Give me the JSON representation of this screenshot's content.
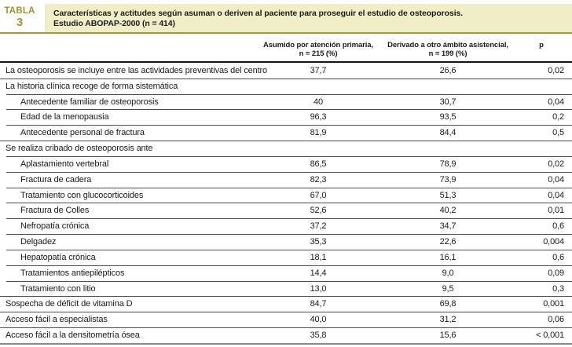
{
  "table_label": {
    "word": "TABLA",
    "number": "3"
  },
  "title": {
    "line1": "Características y actitudes según asuman o deriven al paciente para proseguir el estudio de osteoporosis.",
    "line2": "Estudio ABOPAP-2000 (n = 414)"
  },
  "columns": {
    "col1_line1": "Asumido por atención primaria,",
    "col1_line2": "n = 215 (%)",
    "col2_line1": "Derivado a otro ámbito asistencial,",
    "col2_line2": "n = 199 (%)",
    "p_label": "p"
  },
  "colors": {
    "olive_accent": "#a09a3e",
    "banner_background": "#f0eec6",
    "header_rule": "#141414",
    "bottom_rule": "#8a8a8a"
  },
  "chart_data": {
    "type": "table",
    "title": "Características y actitudes según asuman o deriven al paciente para proseguir el estudio de osteoporosis. Estudio ABOPAP-2000 (n = 414)",
    "columns": [
      "",
      "Asumido por atención primaria, n = 215 (%)",
      "Derivado a otro ámbito asistencial, n = 199 (%)",
      "p"
    ],
    "rows": [
      {
        "label": "La osteoporosis se incluye entre las actividades preventivas del centro",
        "indent": 0,
        "v1": "37,7",
        "v2": "26,6",
        "p": "0,02"
      },
      {
        "label": "La historia clínica recoge de forma sistemática",
        "indent": 0,
        "v1": "",
        "v2": "",
        "p": ""
      },
      {
        "label": "Antecedente familiar de osteoporosis",
        "indent": 1,
        "v1": "40",
        "v2": "30,7",
        "p": "0,04"
      },
      {
        "label": "Edad de la menopausia",
        "indent": 1,
        "v1": "96,3",
        "v2": "93,5",
        "p": "0,2"
      },
      {
        "label": "Antecedente personal de fractura",
        "indent": 1,
        "v1": "81,9",
        "v2": "84,4",
        "p": "0,5"
      },
      {
        "label": "Se realiza cribado de osteoporosis ante",
        "indent": 0,
        "v1": "",
        "v2": "",
        "p": ""
      },
      {
        "label": "Aplastamiento vertebral",
        "indent": 1,
        "v1": "86,5",
        "v2": "78,9",
        "p": "0,02"
      },
      {
        "label": "Fractura de cadera",
        "indent": 1,
        "v1": "82,3",
        "v2": "73,9",
        "p": "0,04"
      },
      {
        "label": "Tratamiento con glucocorticoides",
        "indent": 1,
        "v1": "67,0",
        "v2": "51,3",
        "p": "0,04"
      },
      {
        "label": "Fractura de Colles",
        "indent": 1,
        "v1": "52,6",
        "v2": "40,2",
        "p": "0,01"
      },
      {
        "label": "Nefropatía crónica",
        "indent": 1,
        "v1": "37,2",
        "v2": "34,7",
        "p": "0,6"
      },
      {
        "label": "Delgadez",
        "indent": 1,
        "v1": "35,3",
        "v2": "22,6",
        "p": "0,004"
      },
      {
        "label": "Hepatopatía crónica",
        "indent": 1,
        "v1": "18,1",
        "v2": "16,1",
        "p": "0,6"
      },
      {
        "label": "Tratamientos antiepilépticos",
        "indent": 1,
        "v1": "14,4",
        "v2": "9,0",
        "p": "0,09"
      },
      {
        "label": "Tratamiento con litio",
        "indent": 1,
        "v1": "13,0",
        "v2": "9,5",
        "p": "0,3"
      },
      {
        "label": "Sospecha de déficit de vitamina D",
        "indent": 0,
        "v1": "84,7",
        "v2": "69,8",
        "p": "0,001"
      },
      {
        "label": "Acceso fácil a especialistas",
        "indent": 0,
        "v1": "40,0",
        "v2": "31,2",
        "p": "0,06"
      },
      {
        "label": "Acceso fácil a la densitometría ósea",
        "indent": 0,
        "v1": "35,8",
        "v2": "15,6",
        "p": "< 0,001"
      }
    ]
  }
}
